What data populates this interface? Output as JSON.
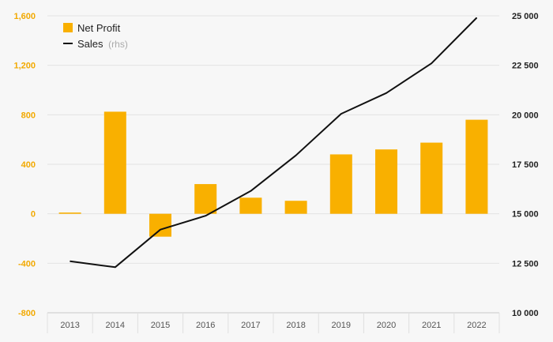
{
  "chart_data": {
    "type": "bar",
    "categories": [
      "2013",
      "2014",
      "2015",
      "2016",
      "2017",
      "2018",
      "2019",
      "2020",
      "2021",
      "2022"
    ],
    "series": [
      {
        "name": "Net Profit",
        "type": "bar",
        "axis": "left",
        "color": "#f9b000",
        "values": [
          10,
          825,
          -185,
          240,
          130,
          105,
          480,
          520,
          575,
          760
        ]
      },
      {
        "name": "Sales",
        "type": "line",
        "axis": "right",
        "color": "#111111",
        "values": [
          12600,
          12300,
          14200,
          14900,
          16150,
          17950,
          20050,
          21100,
          22600,
          24900
        ]
      }
    ],
    "legend": {
      "items": [
        {
          "label": "Net Profit",
          "suffix": "",
          "icon": "bar-swatch"
        },
        {
          "label": "Sales",
          "suffix": "(rhs)",
          "icon": "line-swatch"
        }
      ],
      "position": "top-left"
    },
    "y_left": {
      "ylim": [
        -800,
        1600
      ],
      "ticks": [
        1600,
        1200,
        800,
        400,
        0,
        -400,
        -800
      ],
      "tick_labels": [
        "1,600",
        "1,200",
        "800",
        "400",
        "0",
        "-400",
        "-800"
      ],
      "color": "#f2a900"
    },
    "y_right": {
      "ylim": [
        10000,
        25000
      ],
      "ticks": [
        25000,
        22500,
        20000,
        17500,
        15000,
        12500,
        10000
      ],
      "tick_labels": [
        "25 000",
        "22 500",
        "20 000",
        "17 500",
        "15 000",
        "12 500",
        "10 000"
      ],
      "color": "#222222"
    },
    "grid": true
  }
}
